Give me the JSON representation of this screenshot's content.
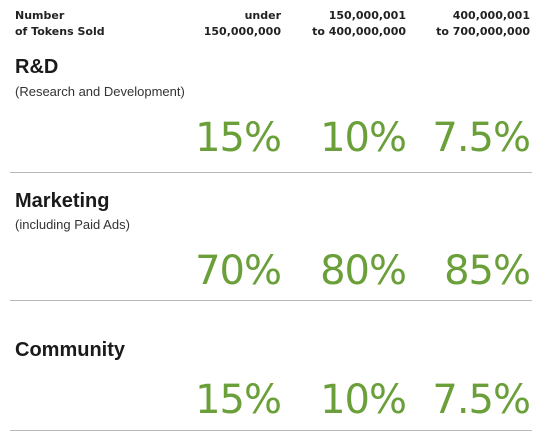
{
  "header": {
    "col0_line1": "Number",
    "col0_line2": "of Tokens Sold",
    "col1_line1": "under",
    "col1_line2": "150,000,000",
    "col2_line1": "150,000,001",
    "col2_line2": "to 400,000,000",
    "col3_line1": "400,000,001",
    "col3_line2": "to 700,000,000"
  },
  "colors": {
    "accent": "#6a9f3a",
    "divider": "#b8b8b8"
  },
  "sections": [
    {
      "title": "R&D",
      "subtitle": "(Research and Development)",
      "values": [
        "15%",
        "10%",
        "7.5%"
      ]
    },
    {
      "title": "Marketing",
      "subtitle": "(including Paid Ads)",
      "values": [
        "70%",
        "80%",
        "85%"
      ]
    },
    {
      "title": "Community",
      "subtitle": "",
      "values": [
        "15%",
        "10%",
        "7.5%"
      ]
    }
  ]
}
